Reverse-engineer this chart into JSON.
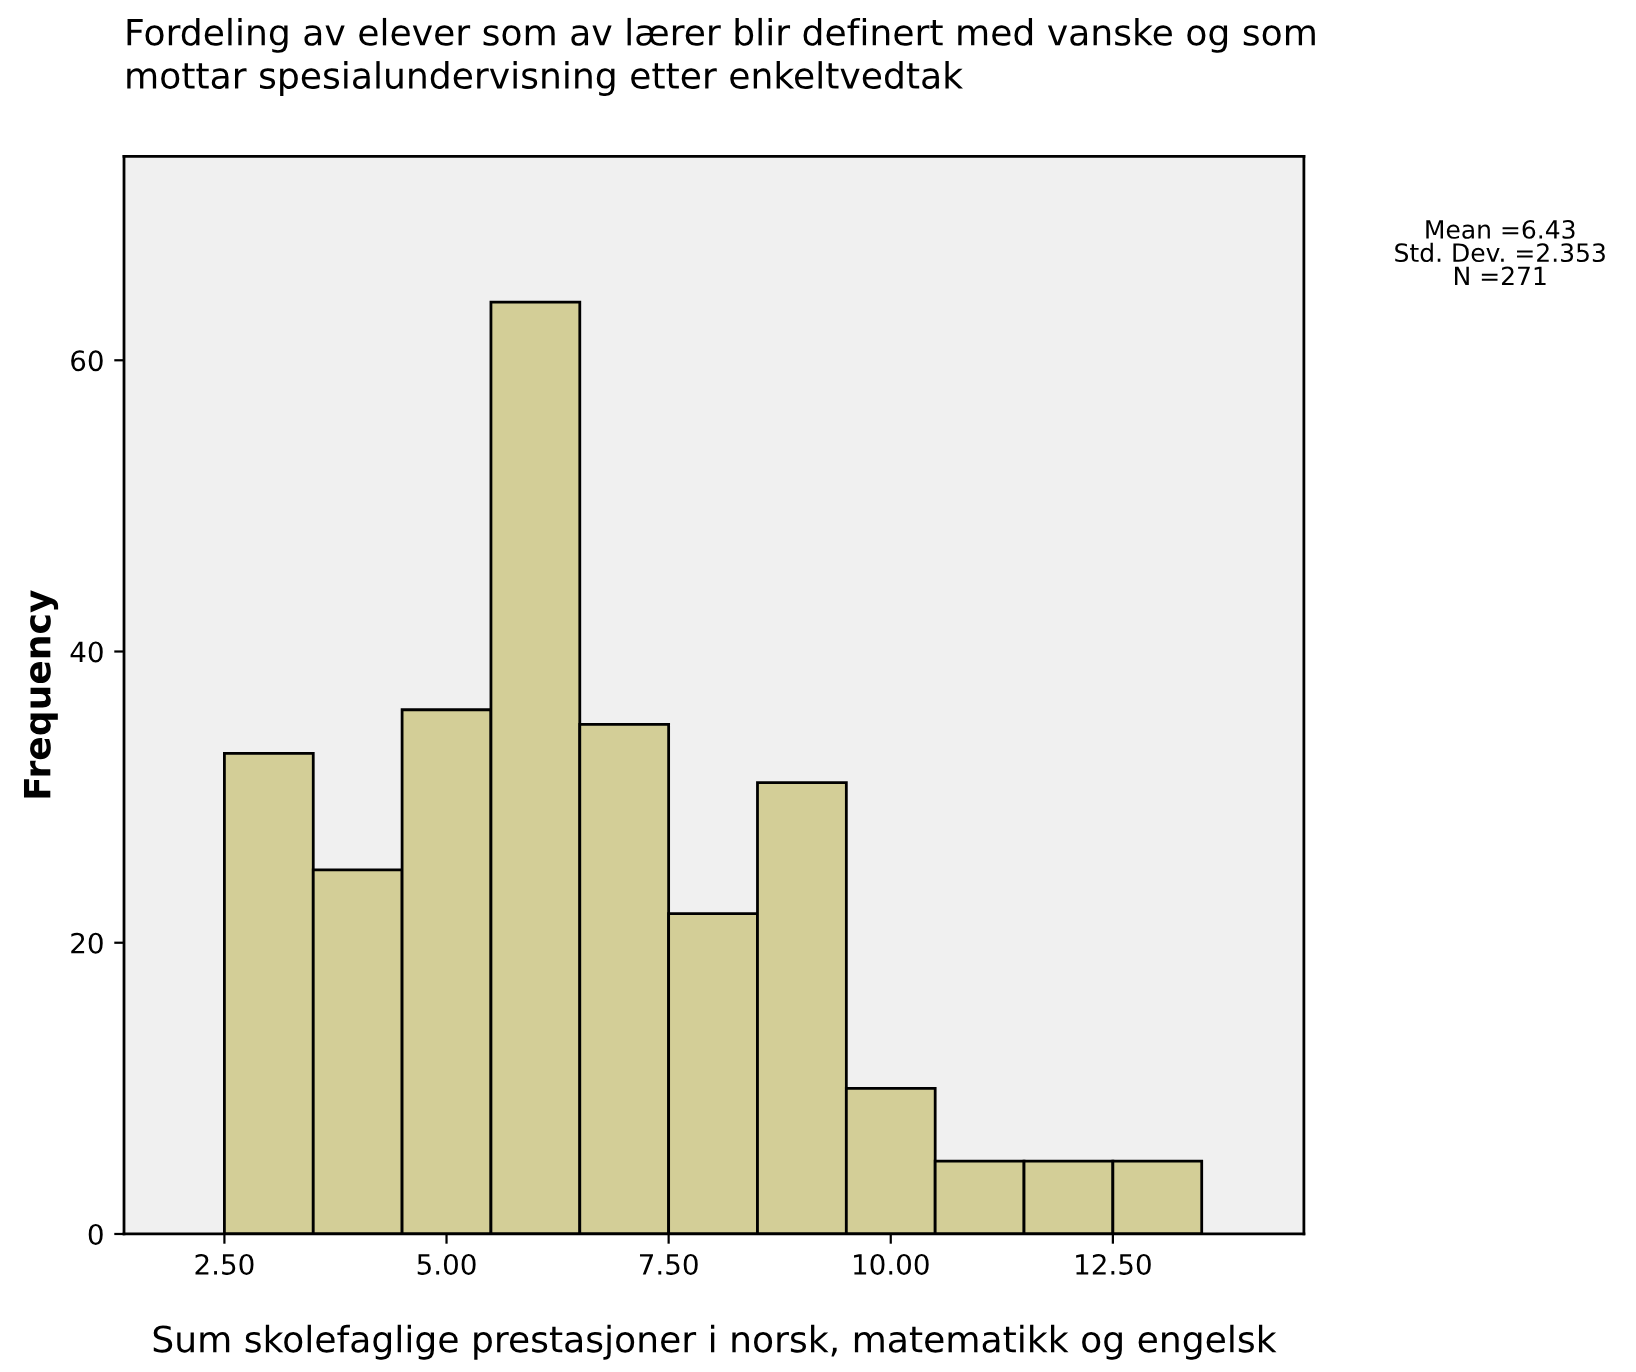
{
  "chart_data": {
    "type": "histogram",
    "title": "Fordeling av elever som av lærer blir definert med vanske og som\nmottar spesialundervisning etter enkeltvedtak",
    "xlabel": "Sum skolefaglige prestasjoner i norsk, matematikk og engelsk",
    "ylabel": "Frequency",
    "bins": [
      2.5,
      3.5,
      4.5,
      5.5,
      6.5,
      7.5,
      8.5,
      9.5,
      10.5,
      11.5,
      12.5,
      13.5
    ],
    "values": [
      33,
      25,
      36,
      64,
      35,
      22,
      31,
      10,
      5,
      5,
      5
    ],
    "color": "#d3ce97",
    "xlim": [
      1.37,
      14.65
    ],
    "ylim": [
      0,
      74
    ],
    "xticks": [
      {
        "value": 2.5,
        "label": "2.50"
      },
      {
        "value": 5.0,
        "label": "5.00"
      },
      {
        "value": 7.5,
        "label": "7.50"
      },
      {
        "value": 10.0,
        "label": "10.00"
      },
      {
        "value": 12.5,
        "label": "12.50"
      }
    ],
    "yticks": [
      0,
      20,
      40,
      60
    ],
    "grid": false,
    "annotations": [
      "Mean =6.43\nStd. Dev. =2.353\nN =271"
    ]
  }
}
